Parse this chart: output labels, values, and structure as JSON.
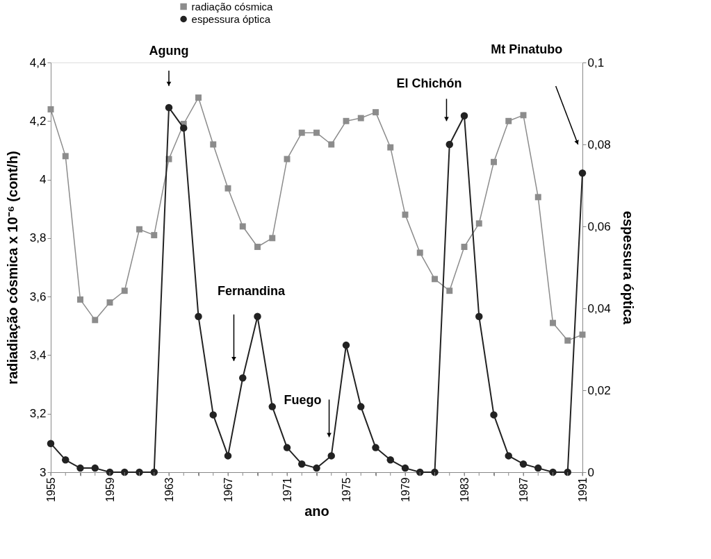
{
  "chart_data": {
    "type": "line",
    "x": [
      1955,
      1956,
      1957,
      1958,
      1959,
      1960,
      1961,
      1962,
      1963,
      1964,
      1965,
      1966,
      1967,
      1968,
      1969,
      1970,
      1971,
      1972,
      1973,
      1974,
      1975,
      1976,
      1977,
      1978,
      1979,
      1980,
      1981,
      1982,
      1983,
      1984,
      1985,
      1986,
      1987,
      1988,
      1989,
      1990,
      1991
    ],
    "series": [
      {
        "name": "radiação cósmica",
        "color": "#8c8c8c",
        "marker": "square",
        "values": [
          4.24,
          4.08,
          3.59,
          3.52,
          3.58,
          3.62,
          3.83,
          3.81,
          4.07,
          4.19,
          4.28,
          4.12,
          3.97,
          3.84,
          3.77,
          3.8,
          4.07,
          4.16,
          4.16,
          4.12,
          4.2,
          4.21,
          4.23,
          4.11,
          3.88,
          3.75,
          3.66,
          3.62,
          3.77,
          3.85,
          4.06,
          4.2,
          4.22,
          3.94,
          3.51,
          3.45,
          3.47
        ]
      },
      {
        "name": "espessura óptica",
        "color": "#222222",
        "marker": "circle",
        "axis": "y2",
        "values": [
          0.007,
          0.003,
          0.001,
          0.001,
          0.0,
          0.0,
          0.0,
          0.0,
          0.089,
          0.084,
          0.038,
          0.014,
          0.004,
          0.023,
          0.038,
          0.016,
          0.006,
          0.002,
          0.001,
          0.004,
          0.031,
          0.016,
          0.006,
          0.003,
          0.001,
          0.0,
          0.0,
          0.08,
          0.087,
          0.038,
          0.014,
          0.004,
          0.002,
          0.001,
          0.0,
          0.0,
          0.073
        ]
      }
    ],
    "xlabel": "ano",
    "ylabel": "radiadiação cósmica x 10⁻⁶ (cont/h)",
    "y2label": "espessura óptica",
    "xlim": [
      1955,
      1991
    ],
    "xticks": [
      1955,
      {
        "value": 1956,
        "label": null
      },
      {
        "value": 1957,
        "label": null
      },
      {
        "value": 1958,
        "label": null
      },
      1959,
      {
        "value": 1960,
        "label": null
      },
      {
        "value": 1961,
        "label": null
      },
      {
        "value": 1962,
        "label": null
      },
      1963,
      {
        "value": 1964,
        "label": null
      },
      {
        "value": 1965,
        "label": null
      },
      {
        "value": 1966,
        "label": null
      },
      1967,
      {
        "value": 1968,
        "label": null
      },
      {
        "value": 1969,
        "label": null
      },
      {
        "value": 1970,
        "label": null
      },
      1971,
      {
        "value": 1972,
        "label": null
      },
      {
        "value": 1973,
        "label": null
      },
      {
        "value": 1974,
        "label": null
      },
      1975,
      {
        "value": 1976,
        "label": null
      },
      {
        "value": 1977,
        "label": null
      },
      {
        "value": 1978,
        "label": null
      },
      1979,
      {
        "value": 1980,
        "label": null
      },
      {
        "value": 1981,
        "label": null
      },
      {
        "value": 1982,
        "label": null
      },
      1983,
      {
        "value": 1984,
        "label": null
      },
      {
        "value": 1985,
        "label": null
      },
      {
        "value": 1986,
        "label": null
      },
      1987,
      {
        "value": 1988,
        "label": null
      },
      {
        "value": 1989,
        "label": null
      },
      {
        "value": 1990,
        "label": null
      },
      1991
    ],
    "ylim": [
      3,
      4.4
    ],
    "yticks": [
      3,
      {
        "value": 3.2,
        "label": "3,2"
      },
      {
        "value": 3.4,
        "label": "3,4"
      },
      {
        "value": 3.6,
        "label": "3,6"
      },
      {
        "value": 3.8,
        "label": "3,8"
      },
      4,
      {
        "value": 4.2,
        "label": "4,2"
      },
      {
        "value": 4.4,
        "label": "4,4"
      }
    ],
    "y2lim": [
      0,
      0.1
    ],
    "y2ticks": [
      0,
      {
        "value": 0.02,
        "label": "0,02"
      },
      {
        "value": 0.04,
        "label": "0,04"
      },
      {
        "value": 0.06,
        "label": "0,06"
      },
      {
        "value": 0.08,
        "label": "0,08"
      },
      {
        "value": 0.1,
        "label": "0,1"
      }
    ],
    "annotations": [
      "Agung",
      "Fernandina",
      "Fuego",
      "El Chichón",
      "Mt Pinatubo"
    ],
    "legend": "top",
    "grid": false,
    "line_style": "solid"
  }
}
